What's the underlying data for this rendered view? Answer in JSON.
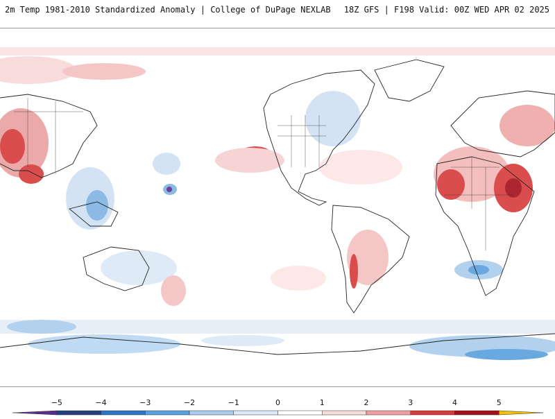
{
  "header": {
    "left": "2m Temp 1981-2010 Standardized Anomaly | College of DuPage NEXLAB",
    "right": "18Z GFS | F198 Valid: 00Z WED APR 02 2025"
  },
  "colorbar": {
    "ticks": [
      {
        "value": -5,
        "label": "−5"
      },
      {
        "value": -4,
        "label": "−4"
      },
      {
        "value": -3,
        "label": "−3"
      },
      {
        "value": -2,
        "label": "−2"
      },
      {
        "value": -1,
        "label": "−1"
      },
      {
        "value": 0,
        "label": "0"
      },
      {
        "value": 1,
        "label": "1"
      },
      {
        "value": 2,
        "label": "2"
      },
      {
        "value": 3,
        "label": "3"
      },
      {
        "value": 4,
        "label": "4"
      },
      {
        "value": 5,
        "label": "5"
      }
    ],
    "colors": [
      "#5b2d8a",
      "#24407a",
      "#2f74c0",
      "#5aa0dc",
      "#a9cdee",
      "#dde9f6",
      "#ffffff",
      "#f7dcdc",
      "#eea0a0",
      "#d73a3a",
      "#a40f1a",
      "#f2c200"
    ]
  }
}
